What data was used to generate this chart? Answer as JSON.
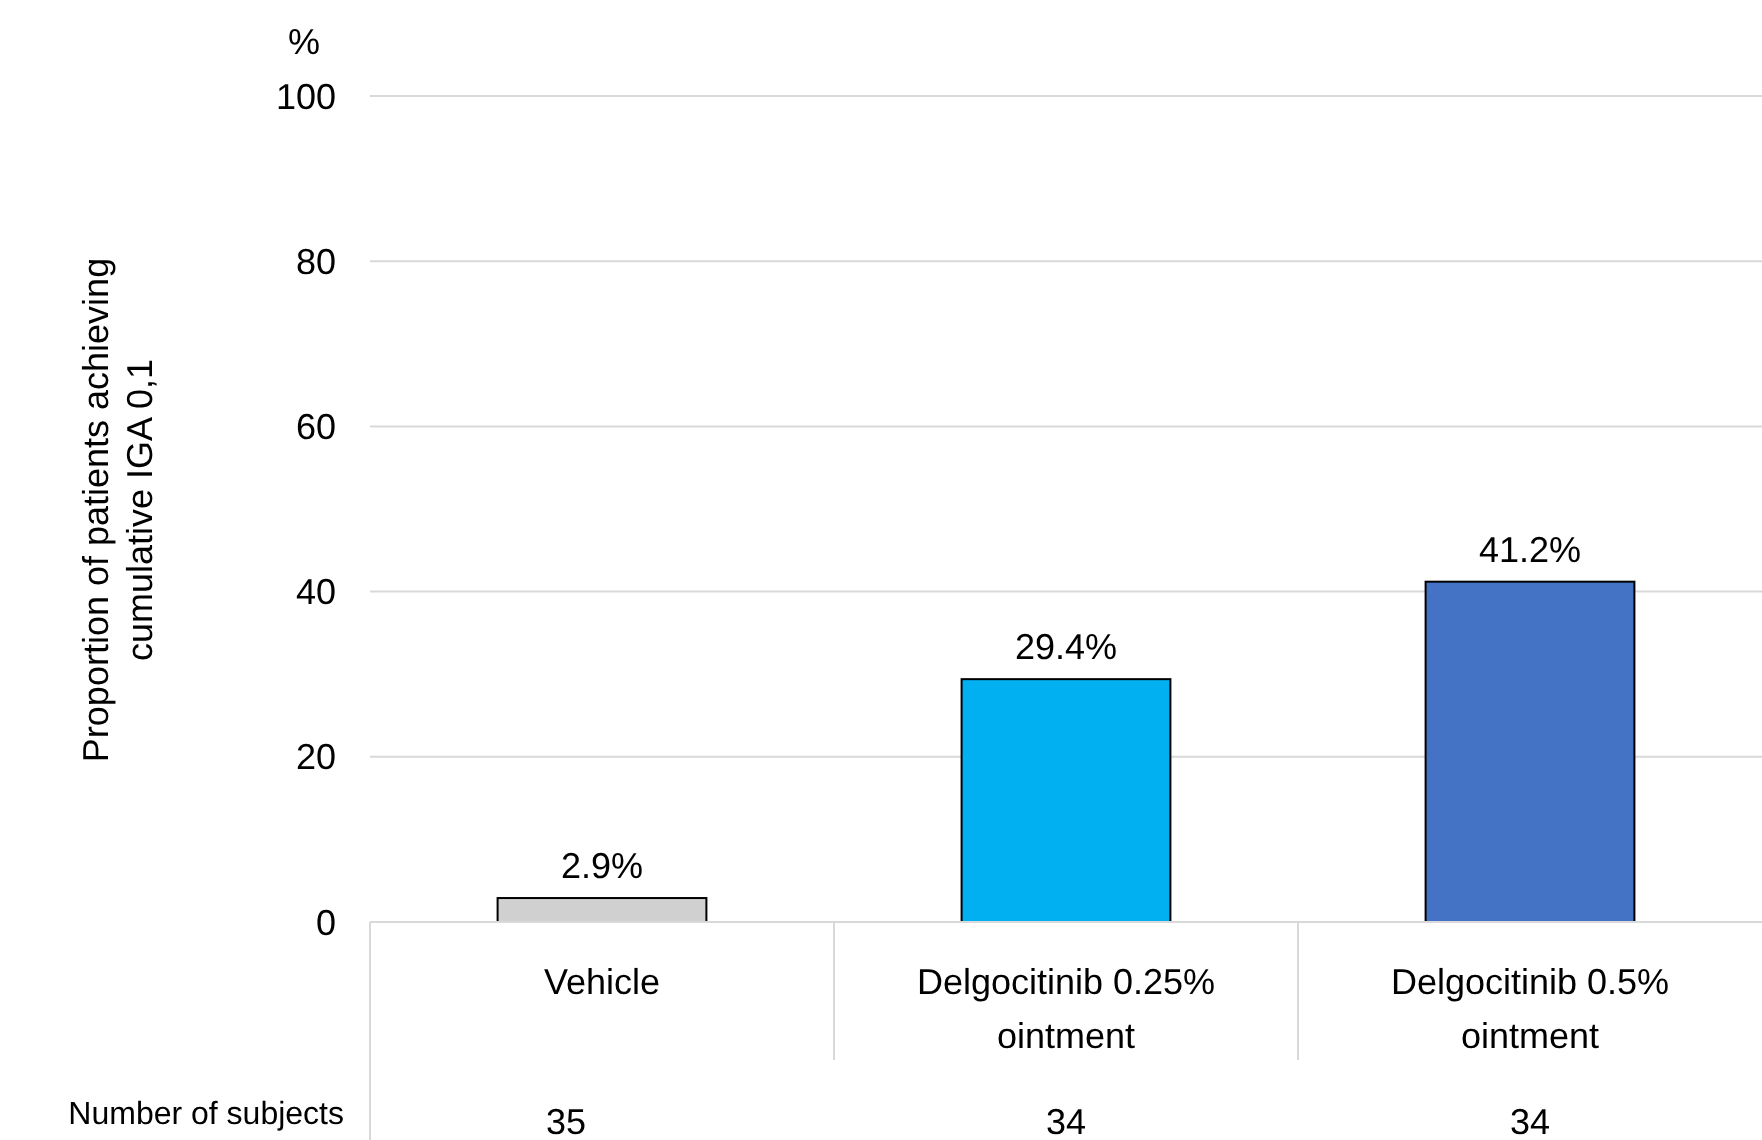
{
  "chart_data": {
    "type": "bar",
    "ylabel": "Proportion of patients achieving cumulative IGA 0,1",
    "categories": [
      "Vehicle",
      "Delgocitinib 0.25% ointment",
      "Delgocitinib 0.5% ointment"
    ],
    "values": [
      2.9,
      29.4,
      41.2
    ],
    "colors": [
      "#d0d0d0",
      "#00b0f0",
      "#4472c4"
    ],
    "value_labels": [
      "2.9%",
      "29.4%",
      "41.2%"
    ],
    "ylim": [
      0,
      100
    ],
    "yticks": [
      0,
      20,
      40,
      60,
      80,
      100
    ],
    "grid": "y",
    "annotations": [
      "%",
      "Number of subjects",
      "35",
      "34",
      "34"
    ]
  }
}
